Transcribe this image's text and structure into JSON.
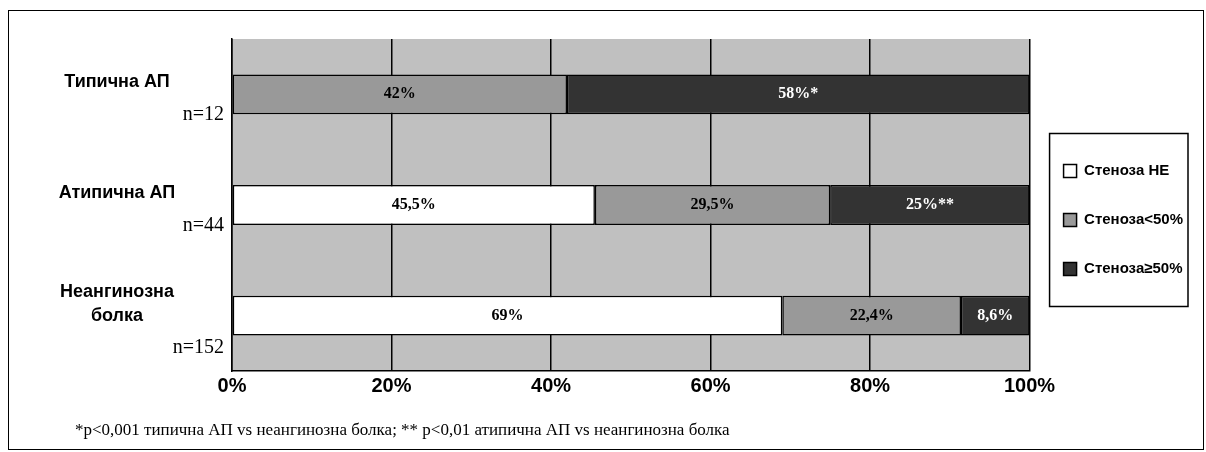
{
  "chart_data": {
    "type": "bar",
    "orientation": "horizontal",
    "stacked": true,
    "categories": [
      "Типична АП\nn=12",
      "Атипична АП\nn=44",
      "Неангинозна\nболка\nn=152"
    ],
    "series": [
      {
        "name": "Стеноза НЕ",
        "color": "#ffffff",
        "values": [
          null,
          45.5,
          69
        ],
        "value_labels": [
          null,
          "45,5%",
          "69%"
        ]
      },
      {
        "name": "Стеноза<50%",
        "color": "#999999",
        "values": [
          42,
          29.5,
          22.4
        ],
        "value_labels": [
          "42%",
          "29,5%",
          "22,4%"
        ]
      },
      {
        "name": "Стеноза≥50%",
        "color": "#333333",
        "values": [
          58,
          25,
          8.6
        ],
        "value_labels": [
          "58%*",
          "25%**",
          "8,6%"
        ]
      }
    ],
    "xlim": [
      0,
      100
    ],
    "xticks": [
      {
        "value": 0,
        "label": "0%"
      },
      {
        "value": 20,
        "label": "20%"
      },
      {
        "value": 40,
        "label": "40%"
      },
      {
        "value": 60,
        "label": "60%"
      },
      {
        "value": 80,
        "label": "80%"
      },
      {
        "value": 100,
        "label": "100%"
      }
    ],
    "grid": "x",
    "legend": "right",
    "annotations": [
      "*p<0,001 типична АП vs неангинозна болка; ** p<0,01 атипична АП vs неангинозна болка"
    ]
  }
}
